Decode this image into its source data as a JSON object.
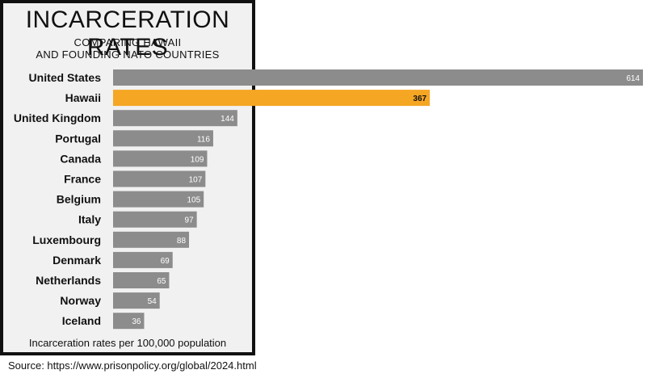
{
  "chart_data": {
    "type": "bar",
    "orientation": "horizontal",
    "title": "INCARCERATION RATES",
    "subtitle": [
      "COMPARING HAWAII",
      "AND FOUNDING NATO COUNTRIES"
    ],
    "categories": [
      "United States",
      "Hawaii",
      "United Kingdom",
      "Portugal",
      "Canada",
      "France",
      "Belgium",
      "Italy",
      "Luxembourg",
      "Denmark",
      "Netherlands",
      "Norway",
      "Iceland"
    ],
    "values": [
      614,
      367,
      144,
      116,
      109,
      107,
      105,
      97,
      88,
      69,
      65,
      54,
      36
    ],
    "value_labels": [
      "614",
      "367",
      "144",
      "116",
      "109",
      "107",
      "105",
      "97",
      "88",
      "69",
      "65",
      "54",
      "36"
    ],
    "highlight": "Hawaii",
    "xlabel": "Incarceration rates per 100,000 population",
    "xlim": [
      0,
      614
    ],
    "grid": false,
    "colors": {
      "bar": "#8c8c8c",
      "highlight": "#f5a623",
      "panel": "#f1f1f1",
      "border": "#111111"
    }
  },
  "source": "Source: https://www.prisonpolicy.org/global/2024.html"
}
